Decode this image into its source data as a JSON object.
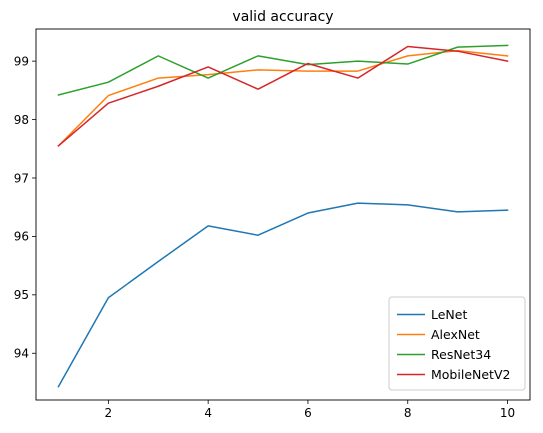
{
  "chart_data": {
    "type": "line",
    "title": "valid accuracy",
    "xlabel": "",
    "ylabel": "",
    "x": [
      1,
      2,
      3,
      4,
      5,
      6,
      7,
      8,
      9,
      10
    ],
    "xticks": [
      2,
      4,
      6,
      8,
      10
    ],
    "yticks": [
      94,
      95,
      96,
      97,
      98,
      99
    ],
    "xlim": [
      0.55,
      10.45
    ],
    "ylim": [
      93.2,
      99.55
    ],
    "grid": false,
    "legend_position": "lower-right",
    "series": [
      {
        "name": "LeNet",
        "color": "#1f77b4",
        "values": [
          93.43,
          94.95,
          95.57,
          96.18,
          96.02,
          96.4,
          96.57,
          96.54,
          96.42,
          96.45
        ]
      },
      {
        "name": "AlexNet",
        "color": "#ff7f0e",
        "values": [
          97.55,
          98.41,
          98.71,
          98.77,
          98.85,
          98.83,
          98.83,
          99.09,
          99.18,
          99.09
        ]
      },
      {
        "name": "ResNet34",
        "color": "#2ca02c",
        "values": [
          98.42,
          98.64,
          99.09,
          98.71,
          99.09,
          98.94,
          99.0,
          98.95,
          99.24,
          99.27
        ]
      },
      {
        "name": "MobileNetV2",
        "color": "#d62728",
        "values": [
          97.55,
          98.28,
          98.57,
          98.9,
          98.52,
          98.96,
          98.71,
          99.25,
          99.17,
          99.0
        ]
      }
    ]
  }
}
